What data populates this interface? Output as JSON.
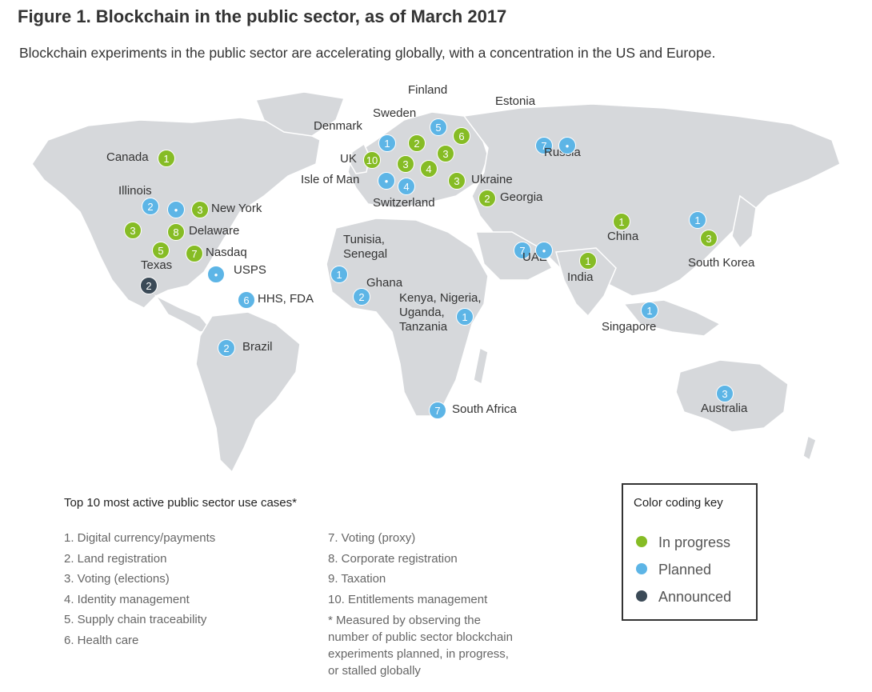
{
  "title": "Figure 1. Blockchain in the public sector, as of March 2017",
  "subtitle": "Blockchain experiments in the public sector are accelerating globally, with a concentration in the US and Europe.",
  "colors": {
    "in_progress": "#86bc25",
    "planned": "#5db5e6",
    "announced": "#3b4a57",
    "land": "#d6d8db"
  },
  "markers": [
    {
      "label": "Canada",
      "value": "1",
      "status": "in_progress"
    },
    {
      "label": "Illinois",
      "value": "2",
      "status": "planned"
    },
    {
      "label": "",
      "value": "•",
      "status": "planned"
    },
    {
      "label": "New York",
      "value": "3",
      "status": "in_progress"
    },
    {
      "label": "",
      "value": "3",
      "status": "in_progress"
    },
    {
      "label": "Delaware",
      "value": "8",
      "status": "in_progress"
    },
    {
      "label": "Texas",
      "value": "5",
      "status": "in_progress"
    },
    {
      "label": "Nasdaq",
      "value": "7",
      "status": "in_progress"
    },
    {
      "label": "USPS",
      "value": "•",
      "status": "planned"
    },
    {
      "label": "",
      "value": "2",
      "status": "announced"
    },
    {
      "label": "HHS, FDA",
      "value": "6",
      "status": "planned"
    },
    {
      "label": "Brazil",
      "value": "2",
      "status": "planned"
    },
    {
      "label": "Denmark",
      "value": "1",
      "status": "planned"
    },
    {
      "label": "Sweden",
      "value": "2",
      "status": "in_progress"
    },
    {
      "label": "Finland",
      "value": "5",
      "status": "planned"
    },
    {
      "label": "Estonia",
      "value": "6",
      "status": "in_progress"
    },
    {
      "label": "",
      "value": "3",
      "status": "in_progress"
    },
    {
      "label": "UK",
      "value": "10",
      "status": "in_progress"
    },
    {
      "label": "",
      "value": "3",
      "status": "in_progress"
    },
    {
      "label": "",
      "value": "4",
      "status": "in_progress"
    },
    {
      "label": "Isle of Man",
      "value": "•",
      "status": "planned"
    },
    {
      "label": "Switzerland",
      "value": "4",
      "status": "planned"
    },
    {
      "label": "Ukraine",
      "value": "3",
      "status": "in_progress"
    },
    {
      "label": "Georgia",
      "value": "2",
      "status": "in_progress"
    },
    {
      "label": "Russia",
      "value": "7",
      "status": "planned"
    },
    {
      "label": "",
      "value": "•",
      "status": "planned"
    },
    {
      "label": "Tunisia,\nSenegal",
      "value": "1",
      "status": "planned"
    },
    {
      "label": "Ghana",
      "value": "2",
      "status": "planned"
    },
    {
      "label": "Kenya, Nigeria,\nUganda,\nTanzania",
      "value": "1",
      "status": "planned"
    },
    {
      "label": "South Africa",
      "value": "7",
      "status": "planned"
    },
    {
      "label": "UAE",
      "value": "7",
      "status": "planned"
    },
    {
      "label": "",
      "value": "•",
      "status": "planned"
    },
    {
      "label": "India",
      "value": "1",
      "status": "in_progress"
    },
    {
      "label": "China",
      "value": "1",
      "status": "in_progress"
    },
    {
      "label": "",
      "value": "1",
      "status": "planned"
    },
    {
      "label": "South Korea",
      "value": "3",
      "status": "in_progress"
    },
    {
      "label": "Singapore",
      "value": "1",
      "status": "planned"
    },
    {
      "label": "Australia",
      "value": "3",
      "status": "planned"
    }
  ],
  "use_cases_title": "Top 10 most active public sector use cases*",
  "use_cases": [
    "1. Digital currency/payments",
    "2. Land registration",
    "3. Voting (elections)",
    "4. Identity management",
    "5. Supply chain traceability",
    "6. Health care",
    "7. Voting (proxy)",
    "8. Corporate registration",
    "9. Taxation",
    "10. Entitlements management"
  ],
  "footnote": [
    "* Measured by observing the",
    "number of public sector blockchain",
    "experiments planned, in progress,",
    "or stalled globally"
  ],
  "key": {
    "title": "Color coding key",
    "items": [
      {
        "label": "In progress",
        "status": "in_progress"
      },
      {
        "label": "Planned",
        "status": "planned"
      },
      {
        "label": "Announced",
        "status": "announced"
      }
    ]
  }
}
